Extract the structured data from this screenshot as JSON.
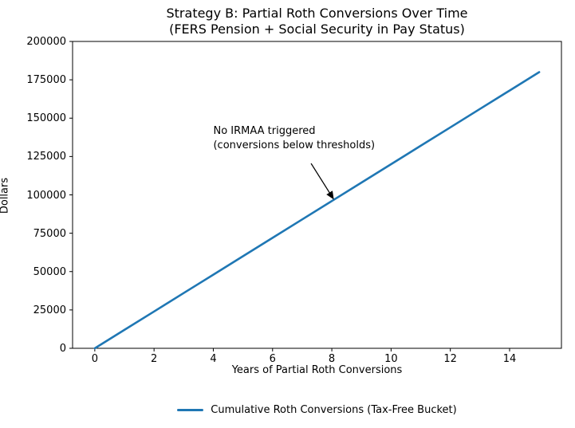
{
  "figure": {
    "title_line1": "Strategy B: Partial Roth Conversions Over Time",
    "title_line2": "(FERS Pension + Social Security in Pay Status)"
  },
  "chart_data": {
    "type": "line",
    "title": "Strategy B: Partial Roth Conversions Over Time\n(FERS Pension + Social Security in Pay Status)",
    "xlabel": "Years of Partial Roth Conversions",
    "ylabel": "Dollars",
    "x": [
      0,
      1,
      2,
      3,
      4,
      5,
      6,
      7,
      8,
      9,
      10,
      11,
      12,
      13,
      14,
      15
    ],
    "series": [
      {
        "name": "Cumulative Roth Conversions (Tax-Free Bucket)",
        "values": [
          0,
          12000,
          24000,
          36000,
          48000,
          60000,
          72000,
          84000,
          96000,
          108000,
          120000,
          132000,
          144000,
          156000,
          168000,
          180000
        ],
        "color": "#1f77b4"
      }
    ],
    "xlim": [
      -0.75,
      15.75
    ],
    "ylim": [
      0,
      200000
    ],
    "xticks": [
      0,
      2,
      4,
      6,
      8,
      10,
      12,
      14
    ],
    "yticks": [
      0,
      25000,
      50000,
      75000,
      100000,
      125000,
      150000,
      175000,
      200000
    ],
    "grid": false,
    "legend_position": "bottom-center",
    "annotation": {
      "text_line1": "No IRMAA triggered",
      "text_line2": "(conversions below thresholds)",
      "text_xy": [
        4,
        143000
      ],
      "arrow_from": [
        7.3,
        120500
      ],
      "arrow_to": [
        8.05,
        97500
      ]
    },
    "colors": {
      "line": "#1f77b4",
      "axis": "#000000",
      "text": "#000000"
    }
  }
}
